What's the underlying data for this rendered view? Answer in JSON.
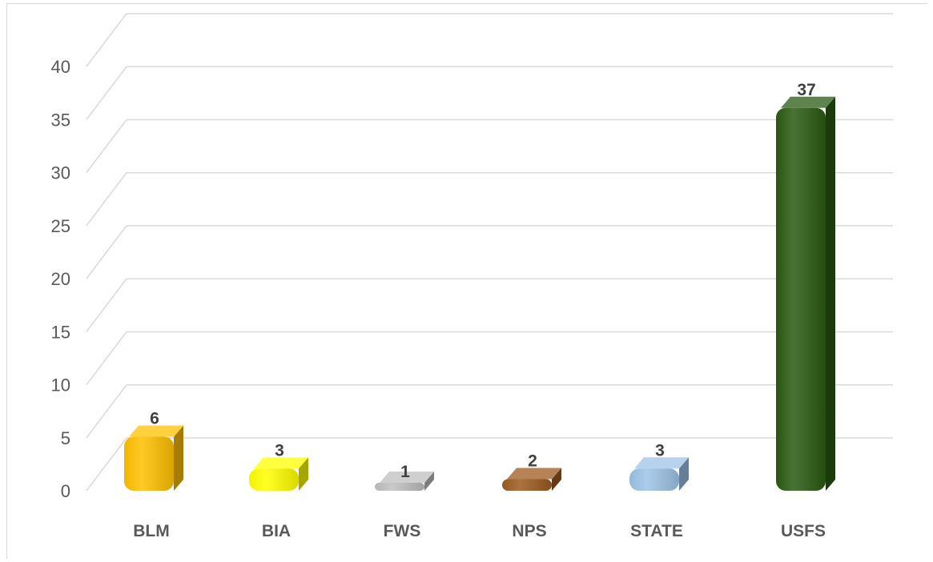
{
  "chart_data": {
    "type": "bar",
    "categories": [
      "BLM",
      "BIA",
      "FWS",
      "NPS",
      "STATE",
      "USFS"
    ],
    "values": [
      6,
      3,
      1,
      2,
      3,
      37
    ],
    "colors": [
      "#ffc000",
      "#ffff00",
      "#bfbfbf",
      "#9c5a1e",
      "#9dc3e6",
      "#2a5a12"
    ],
    "ylim": [
      0,
      40
    ],
    "yticks": [
      0,
      5,
      10,
      15,
      20,
      25,
      30,
      35,
      40
    ],
    "grid": true,
    "data_labels": true,
    "style": "3d-column"
  }
}
